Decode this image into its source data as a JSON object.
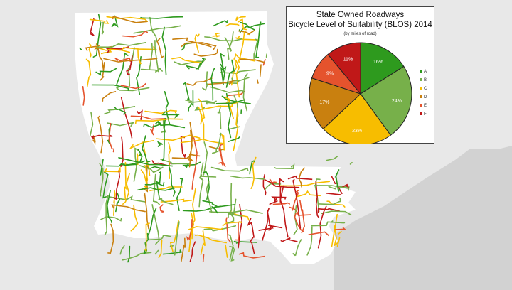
{
  "colors": {
    "background": "#e8e8e8",
    "land": "#ffffff",
    "gulf_land": "#d2d2d2",
    "A": "#2e9a1e",
    "B": "#77b04a",
    "C": "#f7bd00",
    "D": "#c9800f",
    "E": "#e5532d",
    "F": "#c01818"
  },
  "chart_data": {
    "type": "pie",
    "title": "State Owned Roadways",
    "subtitle": "Bicycle Level of Suitability (BLOS) 2014",
    "note": "(by miles of road)",
    "categories": [
      "A",
      "B",
      "C",
      "D",
      "E",
      "F"
    ],
    "values": [
      16,
      24,
      23,
      17,
      9,
      11
    ],
    "value_labels": [
      "16%",
      "24%",
      "23%",
      "17%",
      "9%",
      "11%"
    ],
    "colors": [
      "#2e9a1e",
      "#77b04a",
      "#f7bd00",
      "#c9800f",
      "#e5532d",
      "#c01818"
    ],
    "legend_position": "right"
  }
}
